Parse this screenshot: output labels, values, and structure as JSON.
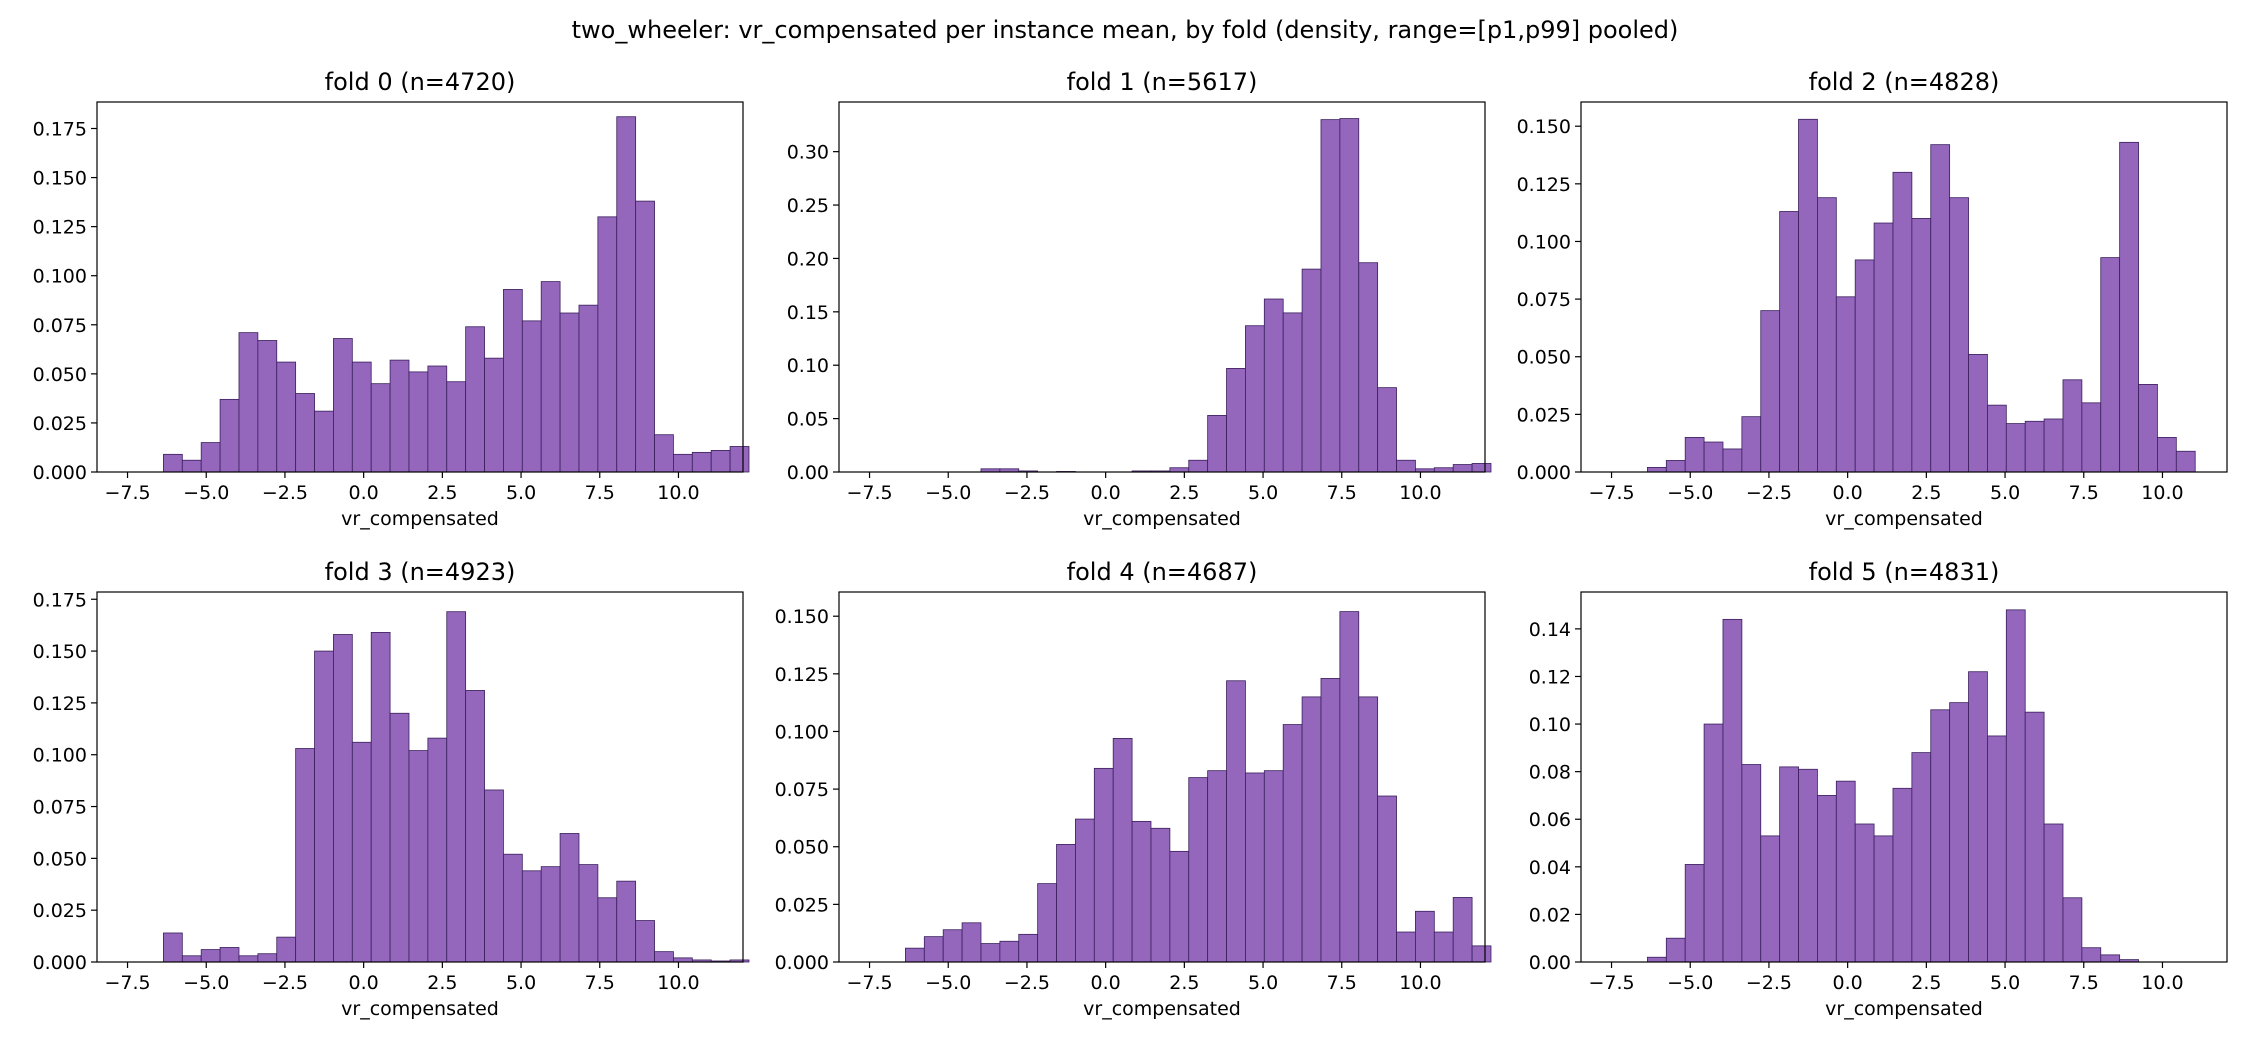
{
  "figure": {
    "suptitle": "two_wheeler: vr_compensated per instance mean, by fold (density, range=[p1,p99] pooled)",
    "bar_color": "#9467bd",
    "edge_color": "#3a1f5c"
  },
  "chart_data": [
    {
      "type": "bar",
      "title": "fold 0 (n=4720)",
      "xlabel": "vr_compensated",
      "ylabel": "",
      "xlim": [
        -8.47,
        12.05
      ],
      "ylim": [
        0,
        0.1885
      ],
      "xticks": [
        -7.5,
        -5.0,
        -2.5,
        0.0,
        2.5,
        5.0,
        7.5,
        10.0
      ],
      "yticks": [
        0.0,
        0.025,
        0.05,
        0.075,
        0.1,
        0.125,
        0.15,
        0.175
      ],
      "ytick_labels": [
        "0.000",
        "0.025",
        "0.050",
        "0.075",
        "0.100",
        "0.125",
        "0.150",
        "0.175"
      ],
      "bin_start": -6.96,
      "bin_width": 0.6,
      "values": [
        0,
        0.009,
        0.006,
        0.015,
        0.037,
        0.071,
        0.067,
        0.056,
        0.04,
        0.031,
        0.068,
        0.056,
        0.045,
        0.057,
        0.051,
        0.054,
        0.046,
        0.074,
        0.058,
        0.093,
        0.077,
        0.097,
        0.081,
        0.085,
        0.13,
        0.181,
        0.138,
        0.019,
        0.009,
        0.01,
        0.011,
        0.013
      ]
    },
    {
      "type": "bar",
      "title": "fold 1 (n=5617)",
      "xlabel": "vr_compensated",
      "ylabel": "",
      "xlim": [
        -8.47,
        12.05
      ],
      "ylim": [
        0,
        0.3465
      ],
      "xticks": [
        -7.5,
        -5.0,
        -2.5,
        0.0,
        2.5,
        5.0,
        7.5,
        10.0
      ],
      "yticks": [
        0.0,
        0.05,
        0.1,
        0.15,
        0.2,
        0.25,
        0.3
      ],
      "ytick_labels": [
        "0.00",
        "0.05",
        "0.10",
        "0.15",
        "0.20",
        "0.25",
        "0.30"
      ],
      "bin_start": -6.96,
      "bin_width": 0.6,
      "values": [
        0,
        0,
        0,
        0,
        0,
        0.003,
        0.003,
        0.001,
        0,
        0.0005,
        0,
        0,
        0,
        0.001,
        0.001,
        0.004,
        0.011,
        0.053,
        0.097,
        0.137,
        0.162,
        0.149,
        0.19,
        0.33,
        0.331,
        0.196,
        0.079,
        0.011,
        0.003,
        0.004,
        0.007,
        0.008
      ]
    },
    {
      "type": "bar",
      "title": "fold 2 (n=4828)",
      "xlabel": "vr_compensated",
      "ylabel": "",
      "xlim": [
        -8.47,
        12.05
      ],
      "ylim": [
        0,
        0.1605
      ],
      "xticks": [
        -7.5,
        -5.0,
        -2.5,
        0.0,
        2.5,
        5.0,
        7.5,
        10.0
      ],
      "yticks": [
        0.0,
        0.025,
        0.05,
        0.075,
        0.1,
        0.125,
        0.15
      ],
      "ytick_labels": [
        "0.000",
        "0.025",
        "0.050",
        "0.075",
        "0.100",
        "0.125",
        "0.150"
      ],
      "bin_start": -6.96,
      "bin_width": 0.6,
      "values": [
        0,
        0.002,
        0.005,
        0.015,
        0.013,
        0.01,
        0.024,
        0.07,
        0.113,
        0.153,
        0.119,
        0.076,
        0.092,
        0.108,
        0.13,
        0.11,
        0.142,
        0.119,
        0.051,
        0.029,
        0.021,
        0.022,
        0.023,
        0.04,
        0.03,
        0.093,
        0.143,
        0.038,
        0.015,
        0.009,
        0,
        0
      ]
    },
    {
      "type": "bar",
      "title": "fold 3 (n=4923)",
      "xlabel": "vr_compensated",
      "ylabel": "",
      "xlim": [
        -8.47,
        12.05
      ],
      "ylim": [
        0,
        0.1785
      ],
      "xticks": [
        -7.5,
        -5.0,
        -2.5,
        0.0,
        2.5,
        5.0,
        7.5,
        10.0
      ],
      "yticks": [
        0.0,
        0.025,
        0.05,
        0.075,
        0.1,
        0.125,
        0.15,
        0.175
      ],
      "ytick_labels": [
        "0.000",
        "0.025",
        "0.050",
        "0.075",
        "0.100",
        "0.125",
        "0.150",
        "0.175"
      ],
      "bin_start": -6.96,
      "bin_width": 0.6,
      "values": [
        0,
        0.014,
        0.003,
        0.006,
        0.007,
        0.003,
        0.004,
        0.012,
        0.103,
        0.15,
        0.158,
        0.106,
        0.159,
        0.12,
        0.102,
        0.108,
        0.169,
        0.131,
        0.083,
        0.052,
        0.044,
        0.046,
        0.062,
        0.047,
        0.031,
        0.039,
        0.02,
        0.005,
        0.002,
        0.001,
        0.0005,
        0.001
      ]
    },
    {
      "type": "bar",
      "title": "fold 4 (n=4687)",
      "xlabel": "vr_compensated",
      "ylabel": "",
      "xlim": [
        -8.47,
        12.05
      ],
      "ylim": [
        0,
        0.1605
      ],
      "xticks": [
        -7.5,
        -5.0,
        -2.5,
        0.0,
        2.5,
        5.0,
        7.5,
        10.0
      ],
      "yticks": [
        0.0,
        0.025,
        0.05,
        0.075,
        0.1,
        0.125,
        0.15
      ],
      "ytick_labels": [
        "0.000",
        "0.025",
        "0.050",
        "0.075",
        "0.100",
        "0.125",
        "0.150"
      ],
      "bin_start": -6.96,
      "bin_width": 0.6,
      "values": [
        0,
        0.006,
        0.011,
        0.014,
        0.017,
        0.008,
        0.009,
        0.012,
        0.034,
        0.051,
        0.062,
        0.084,
        0.097,
        0.061,
        0.058,
        0.048,
        0.08,
        0.083,
        0.122,
        0.082,
        0.083,
        0.103,
        0.115,
        0.123,
        0.152,
        0.115,
        0.072,
        0.013,
        0.022,
        0.013,
        0.028,
        0.007
      ]
    },
    {
      "type": "bar",
      "title": "fold 5 (n=4831)",
      "xlabel": "vr_compensated",
      "ylabel": "",
      "xlim": [
        -8.47,
        12.05
      ],
      "ylim": [
        0,
        0.1555
      ],
      "xticks": [
        -7.5,
        -5.0,
        -2.5,
        0.0,
        2.5,
        5.0,
        7.5,
        10.0
      ],
      "yticks": [
        0.0,
        0.02,
        0.04,
        0.06,
        0.08,
        0.1,
        0.12,
        0.14
      ],
      "ytick_labels": [
        "0.00",
        "0.02",
        "0.04",
        "0.06",
        "0.08",
        "0.10",
        "0.12",
        "0.14"
      ],
      "bin_start": -6.96,
      "bin_width": 0.6,
      "values": [
        0,
        0.002,
        0.01,
        0.041,
        0.1,
        0.144,
        0.083,
        0.053,
        0.082,
        0.081,
        0.07,
        0.076,
        0.058,
        0.053,
        0.073,
        0.088,
        0.106,
        0.109,
        0.122,
        0.095,
        0.148,
        0.105,
        0.058,
        0.027,
        0.006,
        0.003,
        0.001,
        0,
        0,
        0,
        0,
        0
      ]
    }
  ],
  "x_tick_labels": [
    "−7.5",
    "−5.0",
    "−2.5",
    "0.0",
    "2.5",
    "5.0",
    "7.5",
    "10.0"
  ]
}
